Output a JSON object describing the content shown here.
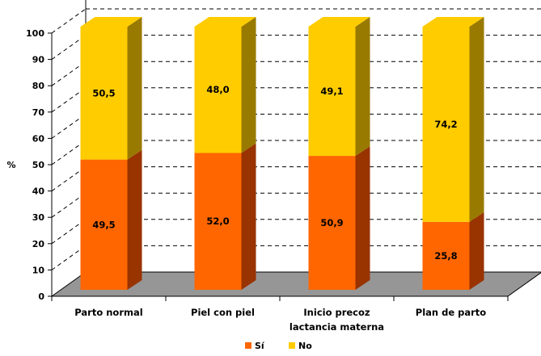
{
  "chart_data": {
    "type": "bar",
    "stacked": true,
    "three_d": true,
    "title": "",
    "xlabel": "",
    "ylabel": "%",
    "ylim": [
      0,
      100
    ],
    "yticks": [
      "0",
      "10",
      "20",
      "30",
      "40",
      "50",
      "60",
      "70",
      "80",
      "90",
      "100"
    ],
    "grid": true,
    "legend_position": "bottom",
    "categories": [
      [
        "Parto normal"
      ],
      [
        "Piel con piel"
      ],
      [
        "Inicio precoz",
        "lactancia materna"
      ],
      [
        "Plan de parto"
      ]
    ],
    "series": [
      {
        "name": "Sí",
        "color": "#ff6600",
        "side_color": "#993300",
        "values": [
          49.5,
          52.0,
          50.9,
          25.8
        ],
        "labels": [
          "49,5",
          "52,0",
          "50,9",
          "25,8"
        ]
      },
      {
        "name": "No",
        "color": "#ffcc00",
        "side_color": "#997a00",
        "values": [
          50.5,
          48.0,
          49.1,
          74.2
        ],
        "labels": [
          "50,5",
          "48,0",
          "49,1",
          "74,2"
        ]
      }
    ],
    "floor_color": "#969696"
  }
}
